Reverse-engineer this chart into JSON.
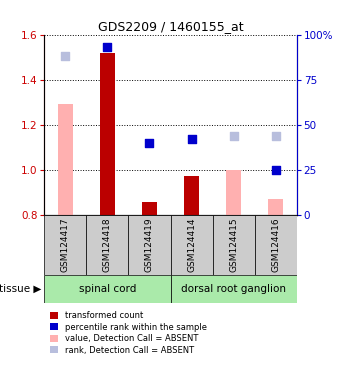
{
  "title": "GDS2209 / 1460155_at",
  "samples": [
    "GSM124417",
    "GSM124418",
    "GSM124419",
    "GSM124414",
    "GSM124415",
    "GSM124416"
  ],
  "tissue_groups": [
    {
      "label": "spinal cord",
      "indices": [
        0,
        1,
        2
      ]
    },
    {
      "label": "dorsal root ganglion",
      "indices": [
        3,
        4,
        5
      ]
    }
  ],
  "ylim_left": [
    0.8,
    1.6
  ],
  "ylim_right": [
    0,
    100
  ],
  "yticks_left": [
    0.8,
    1.0,
    1.2,
    1.4,
    1.6
  ],
  "yticks_right": [
    0,
    25,
    50,
    75,
    100
  ],
  "value_absent_heights": [
    1.29,
    0,
    0,
    0,
    1.0,
    0.87
  ],
  "value_absent_show": [
    true,
    false,
    false,
    false,
    true,
    true
  ],
  "value_present_heights": [
    0,
    1.52,
    0.86,
    0.975,
    0,
    0
  ],
  "value_present_show": [
    false,
    true,
    true,
    true,
    false,
    false
  ],
  "rank_absent_scatter_pct": [
    88,
    0,
    0,
    0,
    44,
    44
  ],
  "rank_absent_scatter_show": [
    true,
    false,
    false,
    false,
    true,
    true
  ],
  "rank_present_scatter_pct": [
    0,
    93,
    40,
    42,
    0,
    25
  ],
  "rank_present_scatter_show": [
    false,
    true,
    true,
    true,
    false,
    true
  ],
  "color_bar_absent": "#ffb0b0",
  "color_bar_present": "#bb0000",
  "color_dot_absent": "#b8bedd",
  "color_dot_present": "#0000cc",
  "color_tissue_bg": "#aaeaaa",
  "color_sample_bg": "#cccccc",
  "bar_width": 0.35,
  "dot_size": 28,
  "left_ylabel_color": "#cc0000",
  "right_ylabel_color": "#0000cc",
  "legend_labels": [
    "transformed count",
    "percentile rank within the sample",
    "value, Detection Call = ABSENT",
    "rank, Detection Call = ABSENT"
  ],
  "legend_colors": [
    "#bb0000",
    "#0000cc",
    "#ffb0b0",
    "#b8bedd"
  ]
}
